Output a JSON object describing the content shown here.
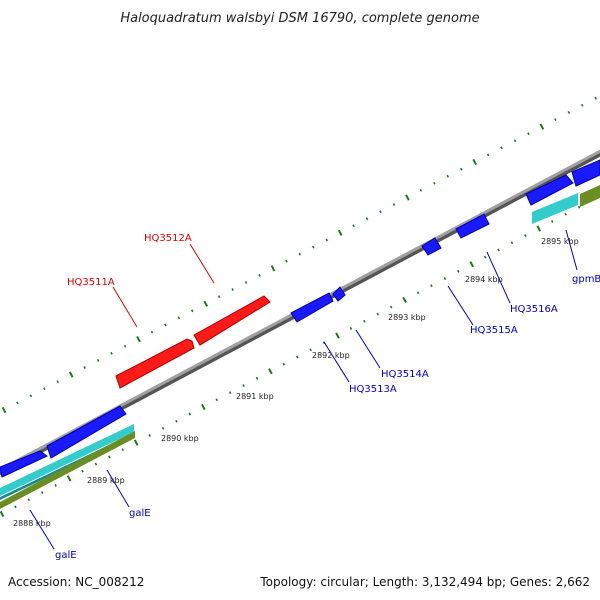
{
  "title": "Haloquadratum walsbyi DSM 16790, complete genome",
  "footer": {
    "accession": "Accession: NC_008212",
    "summary": "Topology: circular; Length: 3,132,494 bp; Genes: 2,662"
  },
  "colors": {
    "backbone": "#8c8c8c",
    "tick_dots": "#1a7a1a",
    "red_gene": "#ff1a1a",
    "blue_gene": "#1a1aff",
    "cyan_band": "#33cccc",
    "olive_band": "#6b8e23",
    "red_label": "#dd0000",
    "blue_label": "#0000cc"
  },
  "ticks": [
    "2888 kbp",
    "2889 kbp",
    "2890 kbp",
    "2891 kbp",
    "2892 kbp",
    "2893 kbp",
    "2894 kbp",
    "2895 kbp"
  ],
  "gene_labels": [
    {
      "id": "lbl-hq3512a",
      "text": "HQ3512A",
      "color": "red"
    },
    {
      "id": "lbl-hq3511a",
      "text": "HQ3511A",
      "color": "red"
    },
    {
      "id": "lbl-hq3516a",
      "text": "HQ3516A",
      "color": "blue"
    },
    {
      "id": "lbl-hq3515a",
      "text": "HQ3515A",
      "color": "blue"
    },
    {
      "id": "lbl-hq3514a",
      "text": "HQ3514A",
      "color": "blue"
    },
    {
      "id": "lbl-hq3513a",
      "text": "HQ3513A",
      "color": "blue"
    },
    {
      "id": "lbl-gpmb",
      "text": "gpmB",
      "color": "blue"
    },
    {
      "id": "lbl-gale-1",
      "text": "galE",
      "color": "blue"
    },
    {
      "id": "lbl-gale-2",
      "text": "galE",
      "color": "blue"
    }
  ]
}
